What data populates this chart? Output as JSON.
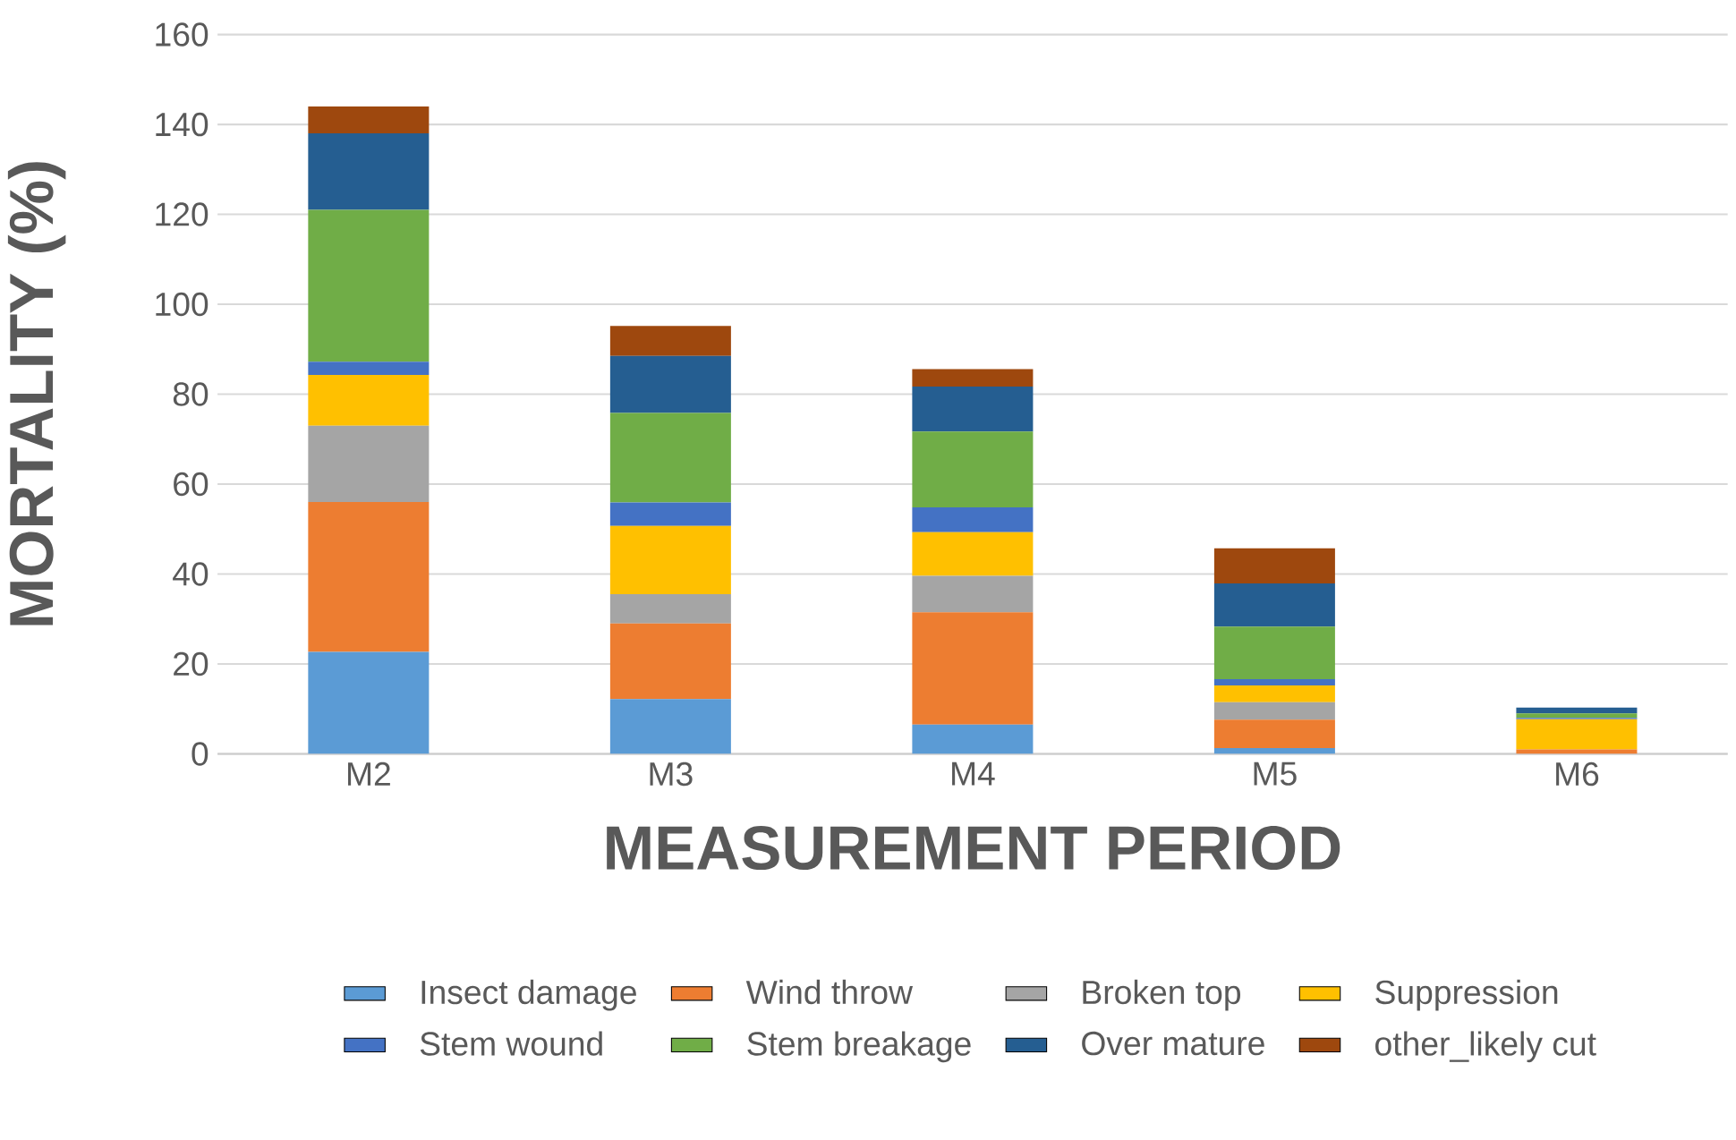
{
  "chart_data": {
    "type": "bar",
    "stacked": true,
    "xlabel": "MEASUREMENT PERIOD",
    "ylabel": "MORTALITY (%)",
    "categories": [
      "M2",
      "M3",
      "M4",
      "M5",
      "M6"
    ],
    "series": [
      {
        "name": "Insect damage",
        "color": "#5b9bd5",
        "values": [
          22.7,
          12.2,
          6.5,
          1.3,
          0
        ]
      },
      {
        "name": "Wind throw",
        "color": "#ed7d31",
        "values": [
          33.3,
          16.8,
          25,
          6.3,
          1
        ]
      },
      {
        "name": "Broken top",
        "color": "#a5a5a5",
        "values": [
          17,
          6.5,
          8.1,
          3.9,
          null
        ]
      },
      {
        "name": "Suppression",
        "color": "#ffc000",
        "values": [
          11.3,
          15.2,
          9.7,
          3.7,
          6.7
        ]
      },
      {
        "name": "Stem wound",
        "color": "#4472c4",
        "values": [
          2.9,
          5.2,
          5.5,
          1.4,
          0.3
        ]
      },
      {
        "name": "Stem breakage",
        "color": "#70ad47",
        "values": [
          33.8,
          19.9,
          16.9,
          11.7,
          1
        ]
      },
      {
        "name": "Over mature",
        "color": "#255e91",
        "values": [
          17,
          12.7,
          10,
          9.6,
          1.3
        ]
      },
      {
        "name": "other_likely cut",
        "color": "#9e480e",
        "values": [
          6,
          6.7,
          3.9,
          7.8,
          0
        ]
      }
    ],
    "ylim": [
      0,
      160
    ],
    "yticks": [
      0,
      20,
      40,
      60,
      80,
      100,
      120,
      140,
      160
    ],
    "grid": "y",
    "legend": "bottom"
  }
}
